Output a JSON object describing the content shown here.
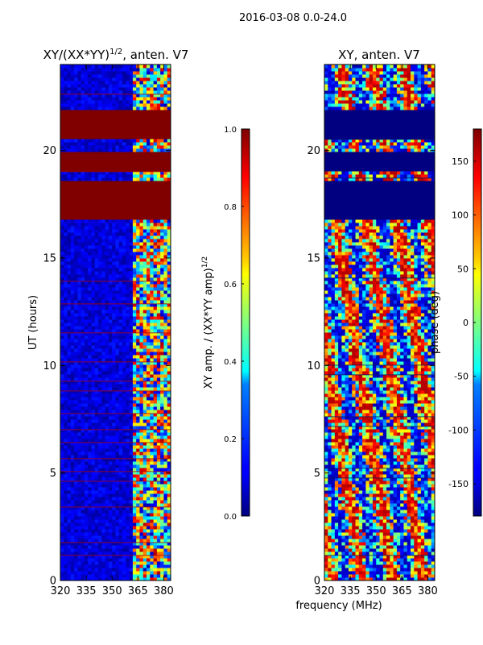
{
  "suptitle": "2016-03-08 0.0-24.0",
  "xlabel": "frequency (MHz)",
  "chart_data": [
    {
      "type": "heatmap",
      "title": "XY/(XX*YY)",
      "title_sup": "1/2",
      "title_suffix": ", anten. V7",
      "ylabel": "UT (hours)",
      "x_ticks": [
        "320",
        "335",
        "350",
        "365",
        "380"
      ],
      "y_ticks": [
        "0",
        "5",
        "10",
        "15",
        "20"
      ],
      "xlim": [
        320,
        384
      ],
      "ylim": [
        0,
        24
      ],
      "colorbar": {
        "label": "XY amp. / (XX*YY amp)",
        "label_sup": "1/2",
        "range": [
          0.0,
          1.0
        ],
        "ticks": [
          "0.0",
          "0.2",
          "0.4",
          "0.6",
          "0.8",
          "1.0"
        ]
      },
      "saturated_blocks_hours": [
        [
          16.8,
          18.6
        ],
        [
          19.1,
          19.9
        ],
        [
          20.5,
          21.9
        ]
      ]
    },
    {
      "type": "heatmap",
      "title": "XY, anten. V7",
      "ylabel": "",
      "x_ticks": [
        "320",
        "335",
        "350",
        "365",
        "380"
      ],
      "y_ticks": [
        "0",
        "5",
        "10",
        "15",
        "20"
      ],
      "xlim": [
        320,
        384
      ],
      "ylim": [
        0,
        24
      ],
      "colorbar": {
        "label": "phase (deg)",
        "range": [
          -180,
          180
        ],
        "ticks": [
          "-150",
          "-100",
          "-50",
          "0",
          "50",
          "100",
          "150"
        ]
      },
      "blank_blocks_hours": [
        [
          16.8,
          18.6
        ],
        [
          19.1,
          19.9
        ],
        [
          20.5,
          21.9
        ]
      ]
    }
  ],
  "colors": {
    "jet_low": "#00007f",
    "jet_high": "#7f0000",
    "frame": "#000000"
  }
}
